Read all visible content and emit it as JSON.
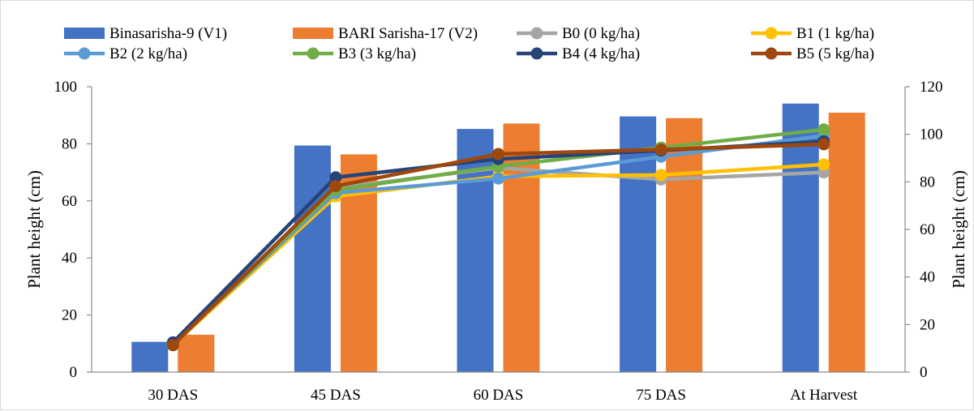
{
  "chart_data": {
    "type": "bar+line",
    "categories": [
      "30 DAS",
      "45 DAS",
      "60 DAS",
      "75 DAS",
      "At Harvest"
    ],
    "bar_axis": {
      "ylabel": "Plant height (cm)",
      "ylim": [
        0,
        100
      ],
      "ticks": [
        "0",
        "20",
        "40",
        "60",
        "80",
        "100"
      ]
    },
    "line_axis": {
      "ylabel": "Plant height (cm)",
      "ylim": [
        0,
        120
      ],
      "ticks": [
        "0",
        "20",
        "40",
        "60",
        "80",
        "100",
        "120"
      ]
    },
    "bar_series": [
      {
        "name": "Binasarisha-9 (V1)",
        "color": "#4472c4",
        "values": [
          10.6,
          79.4,
          85.2,
          89.6,
          94.1
        ]
      },
      {
        "name": "BARI Sarisha-17 (V2)",
        "color": "#ed7d31",
        "values": [
          13.1,
          76.3,
          87.1,
          89.0,
          90.9
        ]
      }
    ],
    "line_series": [
      {
        "name": "B0 (0 kg/ha)",
        "color": "#a5a5a5",
        "values": [
          12.4,
          77.4,
          85.9,
          81.0,
          84.0
        ]
      },
      {
        "name": "B1 (1 kg/ha)",
        "color": "#ffc000",
        "values": [
          11.5,
          73.9,
          82.3,
          82.9,
          87.3
        ]
      },
      {
        "name": "B2 (2 kg/ha)",
        "color": "#5b9bd5",
        "values": [
          12.0,
          75.3,
          81.4,
          90.6,
          99.4
        ]
      },
      {
        "name": "B3 (3 kg/ha)",
        "color": "#70ad47",
        "values": [
          11.8,
          76.6,
          86.5,
          94.4,
          102.0
        ]
      },
      {
        "name": "B4 (4 kg/ha)",
        "color": "#264478",
        "values": [
          12.5,
          81.9,
          89.6,
          93.2,
          97.0
        ]
      },
      {
        "name": "B5 (5 kg/ha)",
        "color": "#9e480e",
        "values": [
          11.3,
          78.2,
          91.7,
          93.6,
          95.8
        ]
      }
    ],
    "grid": false,
    "legend_position": "top"
  }
}
